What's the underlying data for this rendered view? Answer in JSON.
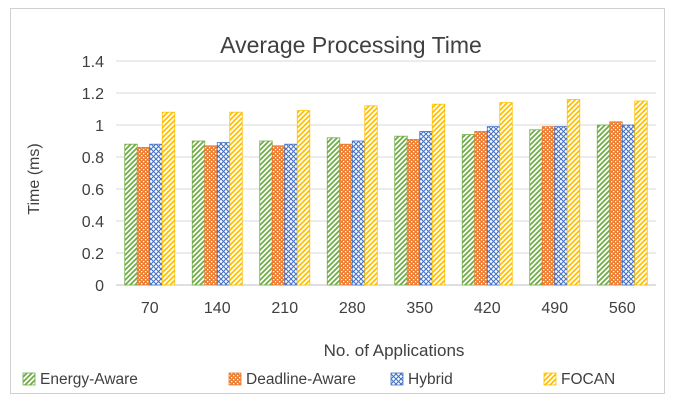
{
  "chart_data": {
    "type": "bar",
    "title": "Average Processing Time",
    "xlabel": "No. of Applications",
    "ylabel": "Time (ms)",
    "ylim": [
      0,
      1.4
    ],
    "yticks": [
      "0",
      "0.2",
      "0.4",
      "0.6",
      "0.8",
      "1",
      "1.2",
      "1.4"
    ],
    "grid": true,
    "legend_position": "bottom",
    "categories": [
      "70",
      "140",
      "210",
      "280",
      "350",
      "420",
      "490",
      "560"
    ],
    "series": [
      {
        "name": "Energy-Aware",
        "color": "#70ad47",
        "pattern": "diagonal-stripes",
        "values": [
          0.88,
          0.9,
          0.9,
          0.92,
          0.93,
          0.94,
          0.97,
          1.0
        ]
      },
      {
        "name": "Deadline-Aware",
        "color": "#ed7d31",
        "pattern": "dots",
        "values": [
          0.86,
          0.87,
          0.87,
          0.88,
          0.91,
          0.96,
          0.99,
          1.02
        ]
      },
      {
        "name": "Hybrid",
        "color": "#4472c4",
        "pattern": "checker",
        "values": [
          0.88,
          0.89,
          0.88,
          0.9,
          0.96,
          0.99,
          0.99,
          1.0
        ]
      },
      {
        "name": "FOCAN",
        "color": "#ffc000",
        "pattern": "diagonal-stripes",
        "values": [
          1.08,
          1.08,
          1.09,
          1.12,
          1.13,
          1.14,
          1.16,
          1.15
        ]
      }
    ]
  }
}
